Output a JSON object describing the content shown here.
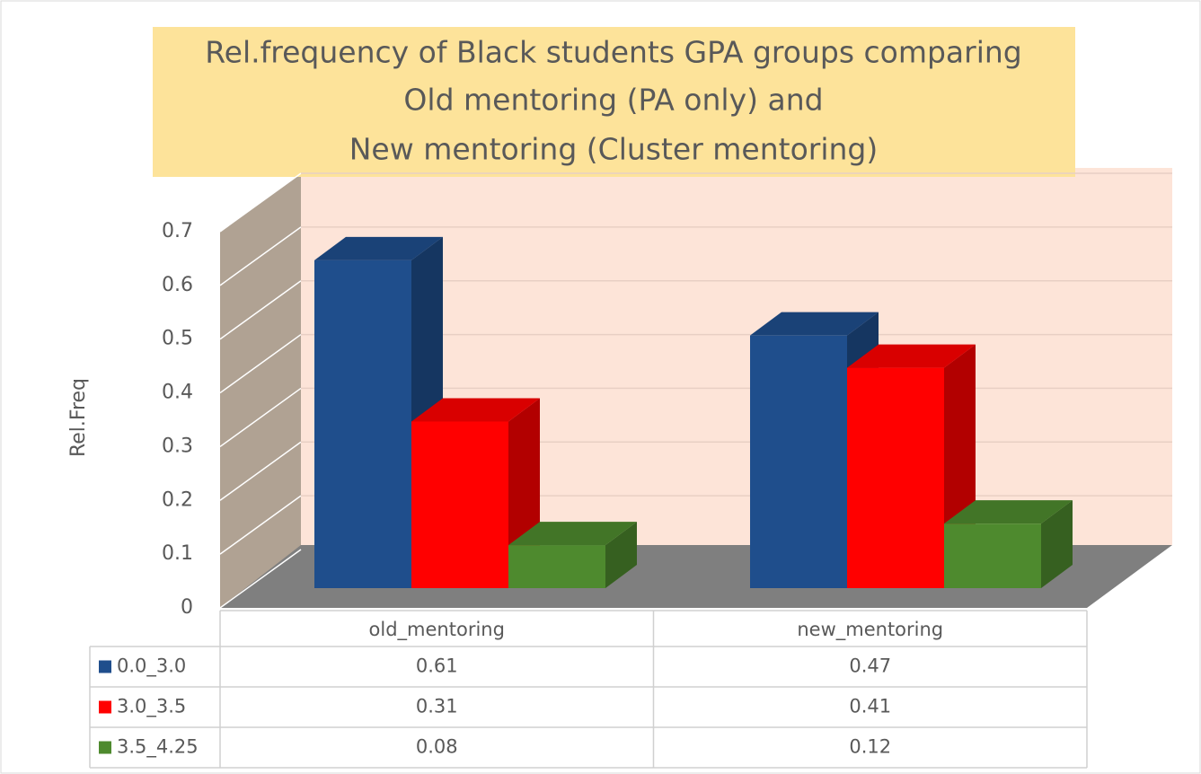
{
  "chart_data": {
    "type": "bar3d",
    "title": [
      "Rel.frequency of Black students GPA groups  comparing",
      "Old mentoring (PA only) and",
      "New mentoring (Cluster mentoring)"
    ],
    "y_label": "Rel.Freq",
    "categories": [
      "old_mentoring",
      "new_mentoring"
    ],
    "series": [
      {
        "name": "0.0_3.0",
        "color": "#1f4e8c",
        "values": [
          0.61,
          0.47
        ]
      },
      {
        "name": "3.0_3.5",
        "color": "#ff0000",
        "values": [
          0.31,
          0.41
        ]
      },
      {
        "name": "3.5_4.25",
        "color": "#4e8a2e",
        "values": [
          0.08,
          0.12
        ]
      }
    ],
    "ylim": [
      0,
      0.7
    ],
    "yticks": [
      0,
      0.1,
      0.2,
      0.3,
      0.4,
      0.5,
      0.6,
      0.7
    ],
    "grid": true,
    "data_table": true
  }
}
